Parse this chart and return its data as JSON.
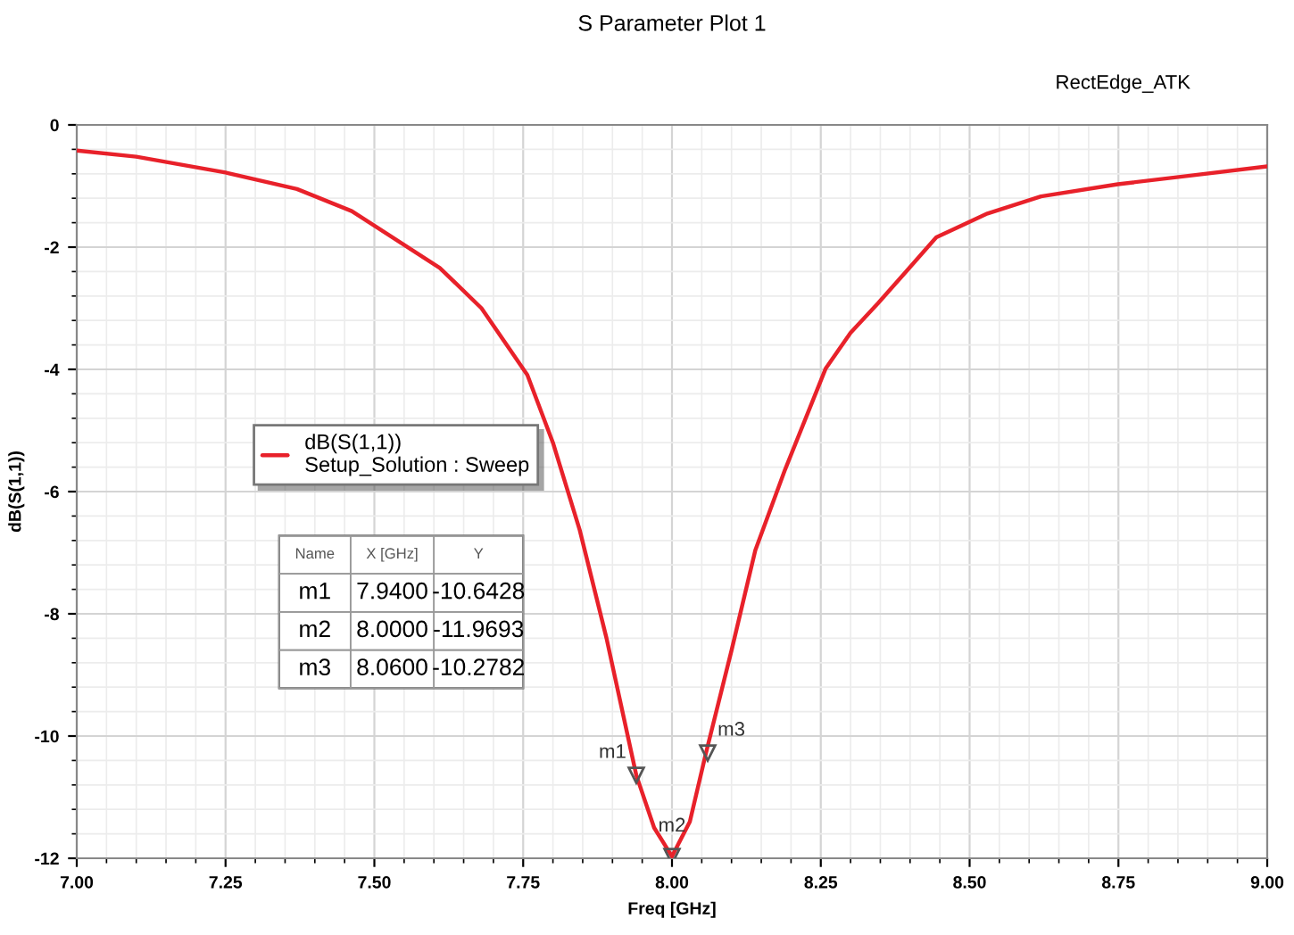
{
  "chart_data": {
    "type": "line",
    "title": "S Parameter Plot 1",
    "xlabel": "Freq [GHz]",
    "ylabel": "dB(S(1,1))",
    "x": [
      7.0,
      7.1,
      7.25,
      7.37,
      7.462,
      7.61,
      7.68,
      7.757,
      7.8,
      7.845,
      7.89,
      7.94,
      7.97,
      8.0,
      8.03,
      8.057,
      8.1,
      8.14,
      8.19,
      8.258,
      8.3,
      8.346,
      8.444,
      8.53,
      8.62,
      8.749,
      8.87,
      9.0
    ],
    "series": [
      {
        "name": "dB(S(1,1))\nSetup_Solution : Sweep",
        "color": "#e8212a",
        "values": [
          -0.42,
          -0.52,
          -0.78,
          -1.05,
          -1.41,
          -2.34,
          -3.0,
          -4.09,
          -5.2,
          -6.63,
          -8.4,
          -10.64,
          -11.5,
          -11.97,
          -11.4,
          -10.28,
          -8.6,
          -6.96,
          -5.64,
          -3.99,
          -3.4,
          -2.92,
          -1.84,
          -1.45,
          -1.17,
          -0.97,
          -0.83,
          -0.68
        ]
      }
    ],
    "xlim": [
      7.0,
      9.0
    ],
    "ylim": [
      -12,
      0
    ],
    "xticks": [
      {
        "value": 7.0,
        "label": "7.00"
      },
      {
        "value": 7.25,
        "label": "7.25"
      },
      {
        "value": 7.5,
        "label": "7.50"
      },
      {
        "value": 7.75,
        "label": "7.75"
      },
      {
        "value": 8.0,
        "label": "8.00"
      },
      {
        "value": 8.25,
        "label": "8.25"
      },
      {
        "value": 8.5,
        "label": "8.50"
      },
      {
        "value": 8.75,
        "label": "8.75"
      },
      {
        "value": 9.0,
        "label": "9.00"
      }
    ],
    "yticks": [
      -12,
      -10,
      -8,
      -6,
      -4,
      -2,
      0
    ],
    "grid": true,
    "legend": "center left",
    "marker": "none",
    "line_style": "solid",
    "annotations": [
      "RectEdge_ATK",
      "Name",
      "X [GHz]",
      "Y",
      "m1",
      "7.9400",
      "-10.6428",
      "m2",
      "8.0000",
      "-11.9693",
      "m3",
      "8.0600",
      "-10.2782",
      {
        "text": "m1",
        "x": 7.94,
        "y": -10.6428
      },
      {
        "text": "m2",
        "x": 8.0,
        "y": -11.9693
      },
      {
        "text": "m3",
        "x": 8.06,
        "y": -10.2782
      }
    ]
  }
}
